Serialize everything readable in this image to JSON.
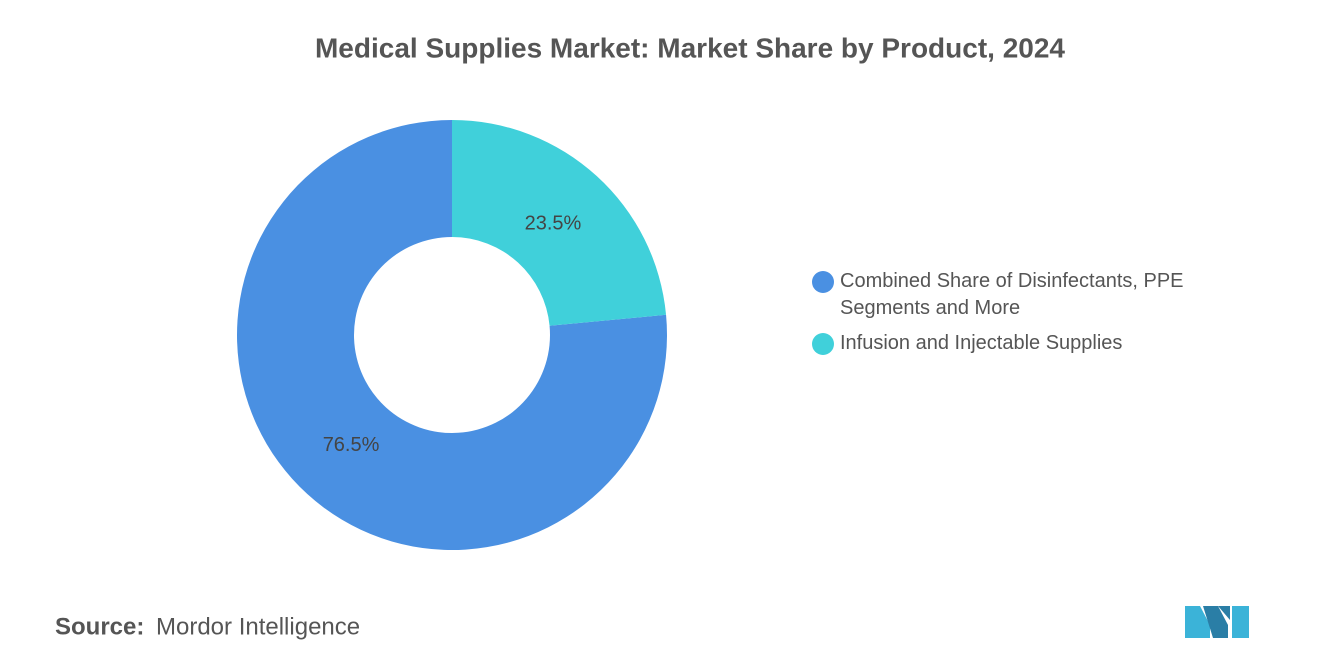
{
  "chart_data": {
    "type": "pie",
    "donut": true,
    "title": "Medical Supplies Market: Market Share by Product, 2024",
    "categories": [
      "Combined Share of Disinfectants, PPE Segments and More",
      "Infusion and Injectable Supplies"
    ],
    "values": [
      76.5,
      23.5
    ],
    "value_labels": [
      "76.5%",
      "23.5%"
    ],
    "colors": [
      "#4a90e2",
      "#40d0da"
    ],
    "source_label": "Source:",
    "source": "Mordor Intelligence"
  }
}
